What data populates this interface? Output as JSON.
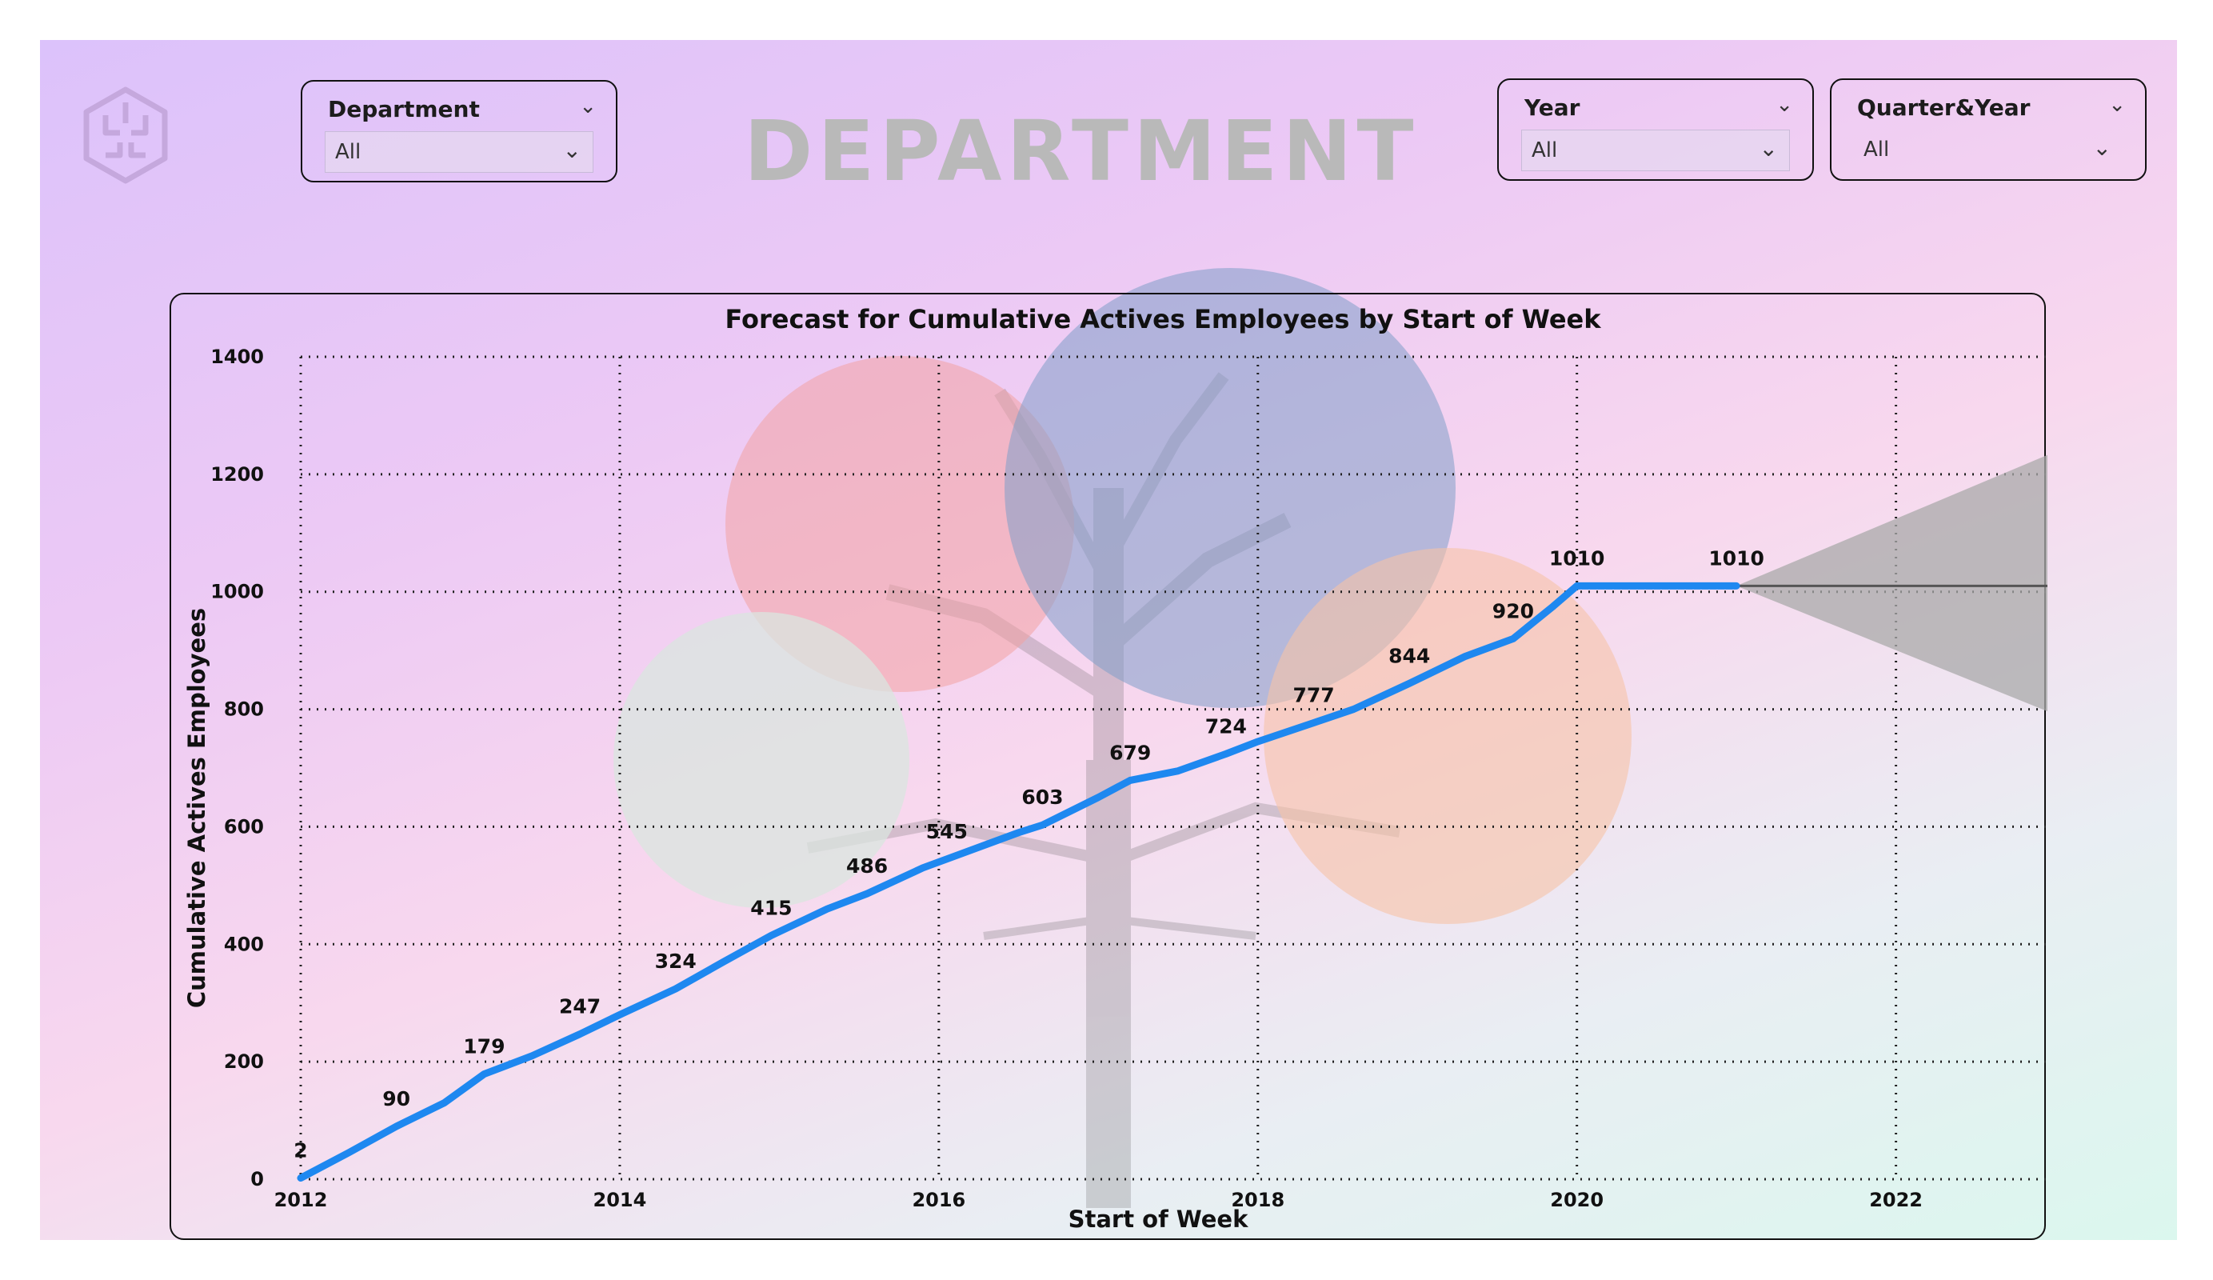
{
  "header": {
    "title": "DEPARTMENT"
  },
  "filters": {
    "department": {
      "label": "Department",
      "value": "All"
    },
    "year": {
      "label": "Year",
      "value": "All"
    },
    "quarter_year": {
      "label": "Quarter&Year",
      "value": "All"
    }
  },
  "icons": {
    "logo": "brain-icon",
    "dropdown": "chevron-down-icon"
  },
  "colors": {
    "line": "#1e88f0",
    "forecast_band": "#a9a9a9",
    "forecast_line": "#555555"
  },
  "chart_data": {
    "type": "line",
    "title": "Forecast for Cumulative Actives Employees by Start of Week",
    "xlabel": "Start of Week",
    "ylabel": "Cumulative Actives Employees",
    "ylim": [
      0,
      1400
    ],
    "xlim": [
      2012,
      2023.1
    ],
    "yticks": [
      0,
      200,
      400,
      600,
      800,
      1000,
      1200,
      1400
    ],
    "xticks": [
      2012,
      2014,
      2016,
      2018,
      2020,
      2022
    ],
    "grid": true,
    "series": [
      {
        "values": [
          {
            "x": 2012.0,
            "y": 2
          },
          {
            "x": 2012.3,
            "y": 45
          },
          {
            "x": 2012.6,
            "y": 90
          },
          {
            "x": 2012.9,
            "y": 130
          },
          {
            "x": 2013.15,
            "y": 179
          },
          {
            "x": 2013.45,
            "y": 210
          },
          {
            "x": 2013.75,
            "y": 247
          },
          {
            "x": 2014.0,
            "y": 280
          },
          {
            "x": 2014.35,
            "y": 324
          },
          {
            "x": 2014.65,
            "y": 370
          },
          {
            "x": 2014.95,
            "y": 415
          },
          {
            "x": 2015.3,
            "y": 460
          },
          {
            "x": 2015.55,
            "y": 486
          },
          {
            "x": 2015.9,
            "y": 530
          },
          {
            "x": 2016.05,
            "y": 545
          },
          {
            "x": 2016.5,
            "y": 590
          },
          {
            "x": 2016.65,
            "y": 603
          },
          {
            "x": 2017.0,
            "y": 650
          },
          {
            "x": 2017.2,
            "y": 679
          },
          {
            "x": 2017.5,
            "y": 695
          },
          {
            "x": 2017.8,
            "y": 724
          },
          {
            "x": 2018.0,
            "y": 745
          },
          {
            "x": 2018.35,
            "y": 777
          },
          {
            "x": 2018.6,
            "y": 800
          },
          {
            "x": 2018.95,
            "y": 844
          },
          {
            "x": 2019.3,
            "y": 890
          },
          {
            "x": 2019.6,
            "y": 920
          },
          {
            "x": 2019.85,
            "y": 975
          },
          {
            "x": 2020.0,
            "y": 1010
          },
          {
            "x": 2021.0,
            "y": 1010
          }
        ]
      }
    ],
    "data_labels": [
      {
        "x": 2012.0,
        "y": 2,
        "text": "2"
      },
      {
        "x": 2012.6,
        "y": 90,
        "text": "90"
      },
      {
        "x": 2013.15,
        "y": 179,
        "text": "179"
      },
      {
        "x": 2013.75,
        "y": 247,
        "text": "247"
      },
      {
        "x": 2014.35,
        "y": 324,
        "text": "324"
      },
      {
        "x": 2014.95,
        "y": 415,
        "text": "415"
      },
      {
        "x": 2015.55,
        "y": 486,
        "text": "486"
      },
      {
        "x": 2016.05,
        "y": 545,
        "text": "545"
      },
      {
        "x": 2016.65,
        "y": 603,
        "text": "603"
      },
      {
        "x": 2017.2,
        "y": 679,
        "text": "679"
      },
      {
        "x": 2017.8,
        "y": 724,
        "text": "724"
      },
      {
        "x": 2018.35,
        "y": 777,
        "text": "777"
      },
      {
        "x": 2018.95,
        "y": 844,
        "text": "844"
      },
      {
        "x": 2019.6,
        "y": 920,
        "text": "920"
      },
      {
        "x": 2020.0,
        "y": 1010,
        "text": "1010"
      },
      {
        "x": 2021.0,
        "y": 1010,
        "text": "1010"
      }
    ],
    "forecast": {
      "line": [
        {
          "x": 2021.0,
          "y": 1010
        },
        {
          "x": 2023.1,
          "y": 1010
        }
      ],
      "upper": [
        {
          "x": 2021.0,
          "y": 1010
        },
        {
          "x": 2023.1,
          "y": 1250
        }
      ],
      "lower": [
        {
          "x": 2021.0,
          "y": 1010
        },
        {
          "x": 2023.1,
          "y": 780
        }
      ]
    }
  }
}
